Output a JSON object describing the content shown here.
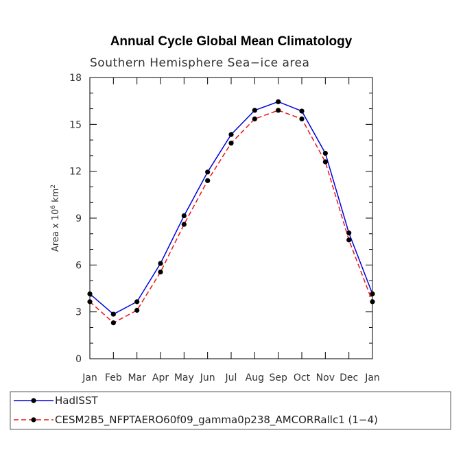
{
  "chart_data": {
    "type": "line",
    "title": "Annual Cycle Global Mean Climatology",
    "subtitle": "Southern Hemisphere Sea−ice area",
    "ylabel_prefix": "Area x 10",
    "ylabel_exp": "6",
    "ylabel_unit": " km",
    "ylabel_unit_exp": "2",
    "ylim": [
      0,
      18
    ],
    "yticks": [
      "0",
      "3",
      "6",
      "9",
      "12",
      "15",
      "18"
    ],
    "categories": [
      "Jan",
      "Feb",
      "Mar",
      "Apr",
      "May",
      "Jun",
      "Jul",
      "Aug",
      "Sep",
      "Oct",
      "Nov",
      "Dec",
      "Jan"
    ],
    "series": [
      {
        "name": "HadISST",
        "color": "#0000dd",
        "dash": "solid",
        "values": [
          4.15,
          2.85,
          3.65,
          6.1,
          9.15,
          11.95,
          14.35,
          15.9,
          16.45,
          15.85,
          13.15,
          8.05,
          4.15
        ]
      },
      {
        "name": "CESM2B5_NFPTAERO60f09_gamma0p238_AMCORRallc1 (1−4)",
        "color": "#ee1111",
        "dash": "dashed",
        "values": [
          3.65,
          2.3,
          3.1,
          5.55,
          8.6,
          11.4,
          13.8,
          15.35,
          15.9,
          15.35,
          12.6,
          7.6,
          3.65
        ]
      }
    ]
  }
}
